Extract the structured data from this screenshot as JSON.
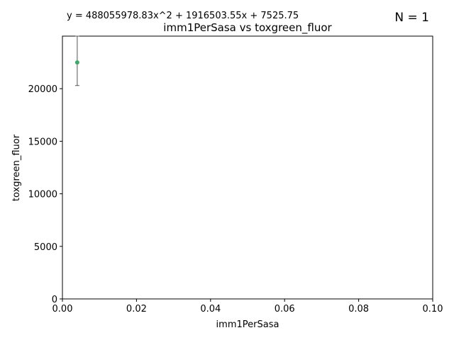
{
  "chart_data": {
    "type": "scatter",
    "title": "imm1PerSasa vs toxgreen_fluor",
    "xlabel": "imm1PerSasa",
    "ylabel": "toxgreen_fluor",
    "equation": "y = 488055978.83x^2 + 1916503.55x + 7525.75",
    "n_label": "N = 1",
    "xlim": [
      0,
      0.1
    ],
    "ylim": [
      0,
      25000
    ],
    "x_ticks": [
      0.0,
      0.02,
      0.04,
      0.06,
      0.08,
      0.1
    ],
    "x_tick_labels": [
      "0.00",
      "0.02",
      "0.04",
      "0.06",
      "0.08",
      "0.10"
    ],
    "y_ticks": [
      0,
      5000,
      10000,
      15000,
      20000
    ],
    "y_tick_labels": [
      "0",
      "5000",
      "10000",
      "15000",
      "20000"
    ],
    "grid": false,
    "points": [
      {
        "x": 0.004,
        "y": 22500,
        "y_err_low": 20300,
        "y_err_high": 25000
      }
    ],
    "colors": {
      "point": "#3aaa6a",
      "errorbar": "#555555",
      "axis": "#000000"
    }
  }
}
